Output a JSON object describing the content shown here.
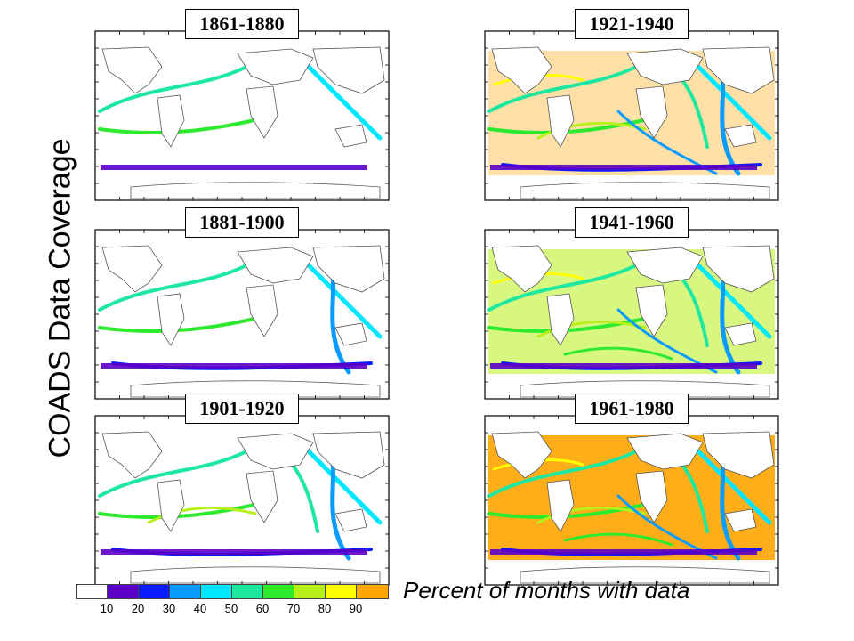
{
  "title": "COADS Data Coverage",
  "panels": [
    {
      "label": "1861-1880",
      "coverage": "sparse-routes"
    },
    {
      "label": "1921-1940",
      "coverage": "dense-routes"
    },
    {
      "label": "1881-1900",
      "coverage": "moderate-routes"
    },
    {
      "label": "1941-1960",
      "coverage": "widespread"
    },
    {
      "label": "1901-1920",
      "coverage": "moderate-dense-routes"
    },
    {
      "label": "1961-1980",
      "coverage": "near-global"
    }
  ],
  "legend": {
    "title": "Percent of months with data",
    "colors": [
      "#ffffff",
      "#5b00c8",
      "#0a1cff",
      "#0a9bff",
      "#00e8ff",
      "#1ee8a0",
      "#2eea2e",
      "#b8f01a",
      "#ffff00",
      "#ffa500"
    ],
    "ticks": [
      "10",
      "20",
      "30",
      "40",
      "50",
      "60",
      "70",
      "80",
      "90"
    ]
  }
}
